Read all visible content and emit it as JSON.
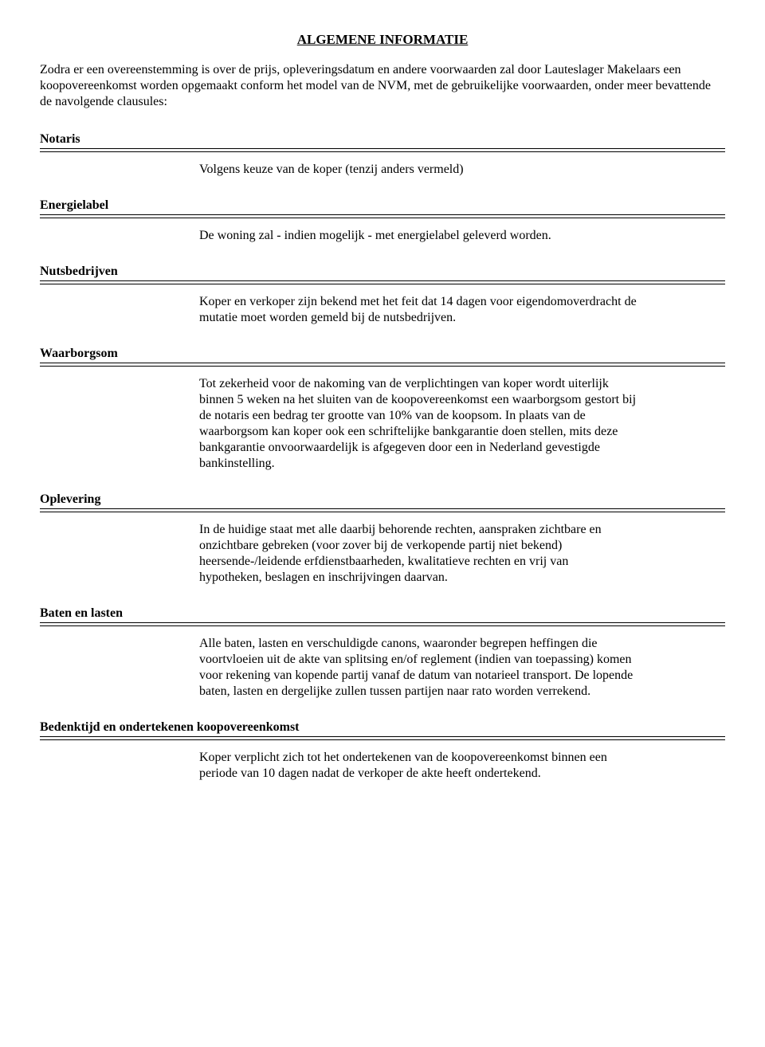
{
  "title": "ALGEMENE INFORMATIE",
  "intro": "Zodra er een overeenstemming is over de prijs, opleveringsdatum en andere voorwaarden zal door Lauteslager Makelaars een koopovereenkomst worden opgemaakt conform het model van de NVM, met de gebruikelijke voorwaarden, onder meer bevattende de navolgende clausules:",
  "sections": {
    "notaris": {
      "heading": "Notaris",
      "body": "Volgens keuze van de koper (tenzij anders vermeld)"
    },
    "energielabel": {
      "heading": "Energielabel",
      "body": "De woning zal - indien mogelijk - met energielabel geleverd worden."
    },
    "nutsbedrijven": {
      "heading": "Nutsbedrijven",
      "body": "Koper en verkoper zijn bekend met het feit dat 14 dagen voor eigendomoverdracht de mutatie moet worden gemeld bij de nutsbedrijven."
    },
    "waarborgsom": {
      "heading": "Waarborgsom",
      "body": "Tot zekerheid voor de nakoming van de verplichtingen van koper wordt uiterlijk binnen 5 weken na het sluiten van de koopovereenkomst een waarborgsom gestort bij de notaris een bedrag ter grootte van 10% van de koopsom. In plaats van de waarborgsom kan koper ook een schriftelijke bankgarantie doen stellen, mits deze bankgarantie onvoorwaardelijk is afgegeven door een in Nederland gevestigde bankinstelling."
    },
    "oplevering": {
      "heading": "Oplevering",
      "body": "In de huidige staat met alle daarbij behorende rechten, aanspraken zichtbare en onzichtbare gebreken (voor zover bij de verkopende partij niet bekend) heersende-/leidende erfdienstbaarheden, kwalitatieve rechten en vrij van\nhypotheken, beslagen en inschrijvingen daarvan."
    },
    "baten": {
      "heading": "Baten en lasten",
      "body": "Alle baten, lasten en verschuldigde canons, waaronder begrepen heffingen die voortvloeien uit de akte van splitsing en/of reglement (indien van toepassing) komen voor rekening van kopende partij vanaf de datum van notarieel transport. De lopende baten, lasten en dergelijke zullen tussen partijen naar rato worden verrekend."
    },
    "bedenktijd": {
      "heading": "Bedenktijd en ondertekenen koopovereenkomst",
      "body": "Koper verplicht zich tot het ondertekenen van de koopovereenkomst binnen een periode van 10 dagen nadat de verkoper de akte heeft ondertekend."
    }
  }
}
